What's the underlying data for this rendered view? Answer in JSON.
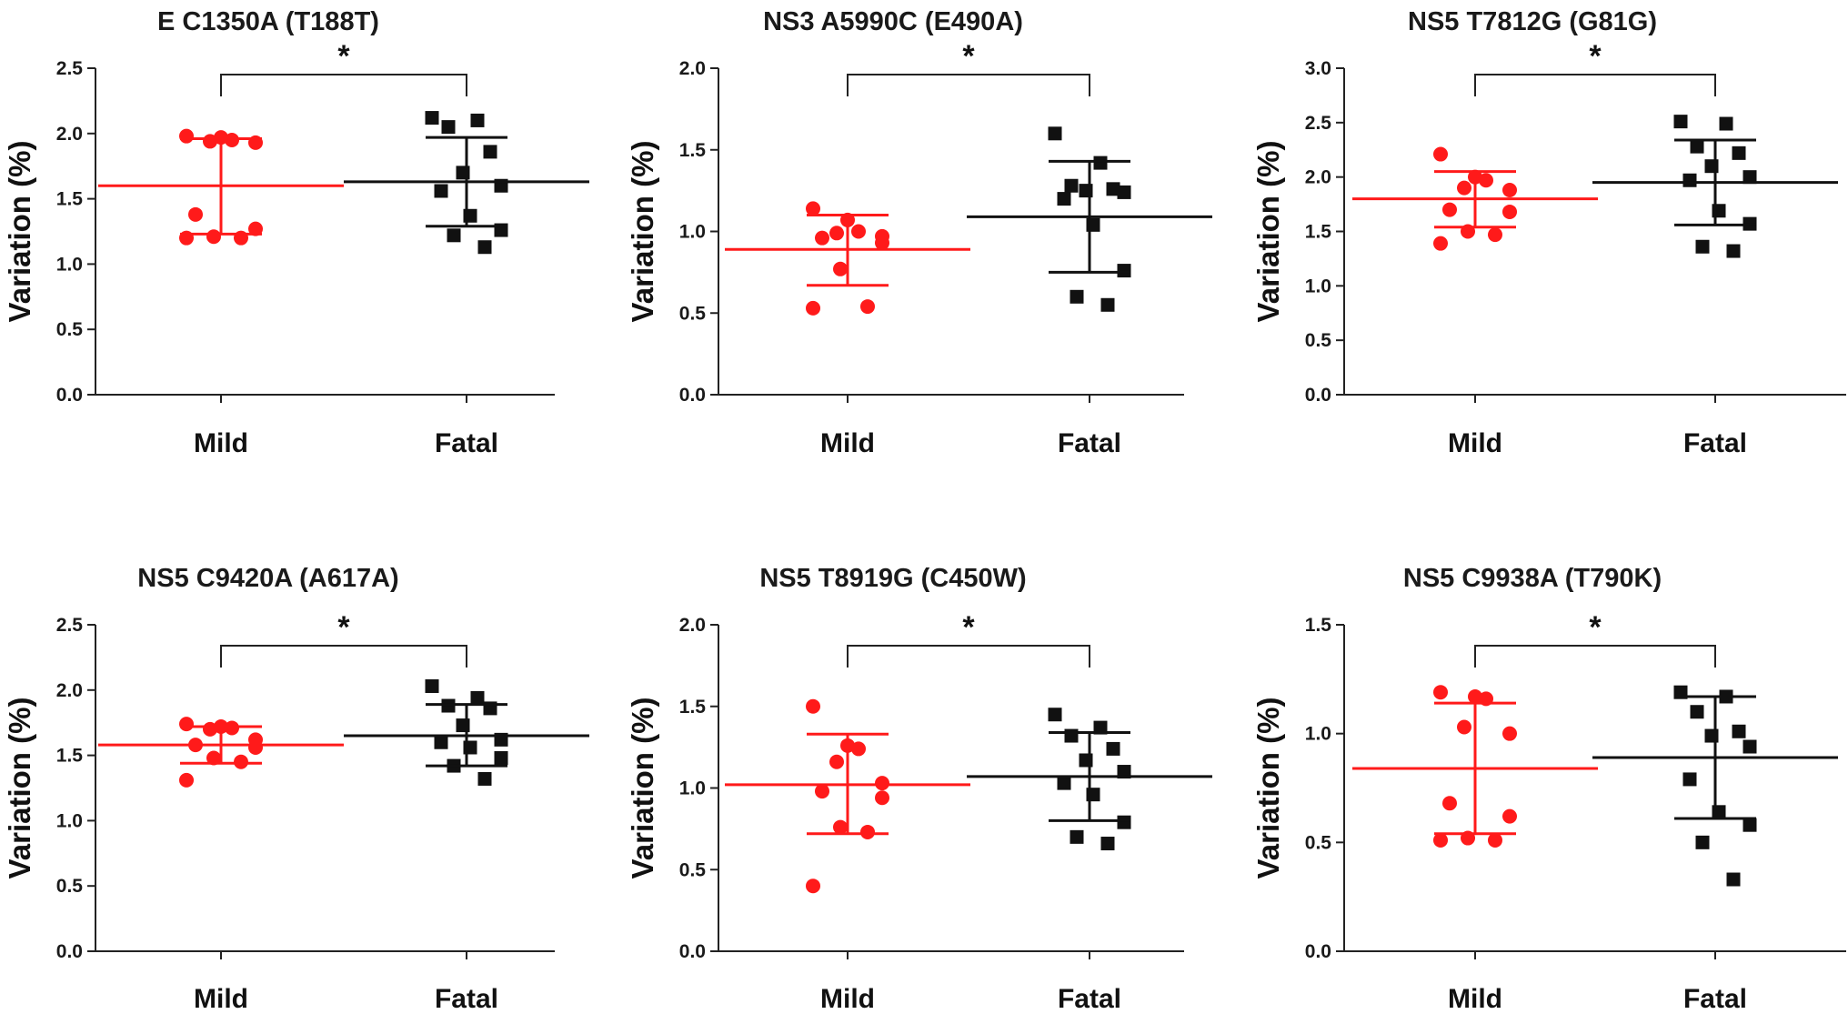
{
  "chart_data": [
    {
      "type": "scatter",
      "title": "E C1350A (T188T)",
      "ylabel": "Variation (%)",
      "xlabel": "",
      "categories": [
        "Mild",
        "Fatal"
      ],
      "ylim": [
        0,
        2.5
      ],
      "yticks": [
        "0.0",
        "0.5",
        "1.0",
        "1.5",
        "2.0",
        "2.5"
      ],
      "significance": "*",
      "series": [
        {
          "name": "Mild",
          "color": "#ff1a1a",
          "marker": "circle",
          "values": [
            1.98,
            1.97,
            1.95,
            1.94,
            1.93,
            1.38,
            1.27,
            1.21,
            1.2,
            1.2
          ],
          "mean": 1.6,
          "sd": [
            1.23,
            1.96
          ]
        },
        {
          "name": "Fatal",
          "color": "#111111",
          "marker": "square",
          "values": [
            2.12,
            2.1,
            2.05,
            1.86,
            1.7,
            1.6,
            1.56,
            1.37,
            1.26,
            1.22,
            1.13
          ],
          "mean": 1.63,
          "sd": [
            1.29,
            1.97
          ]
        }
      ]
    },
    {
      "type": "scatter",
      "title": "NS3 A5990C (E490A)",
      "ylabel": "Variation (%)",
      "xlabel": "",
      "categories": [
        "Mild",
        "Fatal"
      ],
      "ylim": [
        0,
        2.0
      ],
      "yticks": [
        "0.0",
        "0.5",
        "1.0",
        "1.5",
        "2.0"
      ],
      "significance": "*",
      "series": [
        {
          "name": "Mild",
          "color": "#ff1a1a",
          "marker": "circle",
          "values": [
            1.14,
            1.07,
            1.0,
            0.99,
            0.97,
            0.96,
            0.93,
            0.77,
            0.54,
            0.53
          ],
          "mean": 0.89,
          "sd": [
            0.67,
            1.1
          ]
        },
        {
          "name": "Fatal",
          "color": "#111111",
          "marker": "square",
          "values": [
            1.6,
            1.42,
            1.28,
            1.26,
            1.25,
            1.24,
            1.2,
            1.04,
            0.76,
            0.6,
            0.55
          ],
          "mean": 1.09,
          "sd": [
            0.75,
            1.43
          ]
        }
      ]
    },
    {
      "type": "scatter",
      "title": "NS5 T7812G (G81G)",
      "ylabel": "Variation (%)",
      "xlabel": "",
      "categories": [
        "Mild",
        "Fatal"
      ],
      "ylim": [
        0,
        3.0
      ],
      "yticks": [
        "0.0",
        "0.5",
        "1.0",
        "1.5",
        "2.0",
        "2.5",
        "3.0"
      ],
      "significance": "*",
      "series": [
        {
          "name": "Mild",
          "color": "#ff1a1a",
          "marker": "circle",
          "values": [
            2.21,
            2.0,
            1.97,
            1.9,
            1.88,
            1.7,
            1.68,
            1.5,
            1.47,
            1.39
          ],
          "mean": 1.8,
          "sd": [
            1.54,
            2.05
          ]
        },
        {
          "name": "Fatal",
          "color": "#111111",
          "marker": "square",
          "values": [
            2.51,
            2.49,
            2.28,
            2.22,
            2.1,
            2.0,
            1.97,
            1.69,
            1.57,
            1.36,
            1.32
          ],
          "mean": 1.95,
          "sd": [
            1.56,
            2.34
          ]
        }
      ]
    },
    {
      "type": "scatter",
      "title": "NS5 C9420A (A617A)",
      "ylabel": "Variation (%)",
      "xlabel": "",
      "categories": [
        "Mild",
        "Fatal"
      ],
      "ylim": [
        0,
        2.5
      ],
      "yticks": [
        "0.0",
        "0.5",
        "1.0",
        "1.5",
        "2.0",
        "2.5"
      ],
      "significance": "*",
      "series": [
        {
          "name": "Mild",
          "color": "#ff1a1a",
          "marker": "circle",
          "values": [
            1.74,
            1.72,
            1.71,
            1.7,
            1.62,
            1.58,
            1.56,
            1.48,
            1.45,
            1.31
          ],
          "mean": 1.58,
          "sd": [
            1.44,
            1.72
          ]
        },
        {
          "name": "Fatal",
          "color": "#111111",
          "marker": "square",
          "values": [
            2.03,
            1.94,
            1.88,
            1.86,
            1.73,
            1.62,
            1.6,
            1.56,
            1.48,
            1.42,
            1.32
          ],
          "mean": 1.65,
          "sd": [
            1.42,
            1.89
          ]
        }
      ]
    },
    {
      "type": "scatter",
      "title": "NS5 T8919G (C450W)",
      "ylabel": "Variation (%)",
      "xlabel": "",
      "categories": [
        "Mild",
        "Fatal"
      ],
      "ylim": [
        0,
        2.0
      ],
      "yticks": [
        "0.0",
        "0.5",
        "1.0",
        "1.5",
        "2.0"
      ],
      "significance": "*",
      "series": [
        {
          "name": "Mild",
          "color": "#ff1a1a",
          "marker": "circle",
          "values": [
            1.5,
            1.26,
            1.24,
            1.16,
            1.03,
            0.98,
            0.94,
            0.76,
            0.73,
            0.4
          ],
          "mean": 1.02,
          "sd": [
            0.72,
            1.33
          ]
        },
        {
          "name": "Fatal",
          "color": "#111111",
          "marker": "square",
          "values": [
            1.45,
            1.37,
            1.32,
            1.24,
            1.17,
            1.1,
            1.03,
            0.96,
            0.79,
            0.7,
            0.66
          ],
          "mean": 1.07,
          "sd": [
            0.8,
            1.34
          ]
        }
      ]
    },
    {
      "type": "scatter",
      "title": "NS5 C9938A (T790K)",
      "ylabel": "Variation (%)",
      "xlabel": "",
      "categories": [
        "Mild",
        "Fatal"
      ],
      "ylim": [
        0,
        1.5
      ],
      "yticks": [
        "0.0",
        "0.5",
        "1.0",
        "1.5"
      ],
      "significance": "*",
      "series": [
        {
          "name": "Mild",
          "color": "#ff1a1a",
          "marker": "circle",
          "values": [
            1.19,
            1.17,
            1.16,
            1.03,
            1.0,
            0.68,
            0.62,
            0.52,
            0.51,
            0.51
          ],
          "mean": 0.84,
          "sd": [
            0.54,
            1.14
          ]
        },
        {
          "name": "Fatal",
          "color": "#111111",
          "marker": "square",
          "values": [
            1.19,
            1.17,
            1.1,
            1.01,
            0.99,
            0.94,
            0.79,
            0.64,
            0.58,
            0.5,
            0.33
          ],
          "mean": 0.89,
          "sd": [
            0.61,
            1.17
          ]
        }
      ]
    }
  ]
}
